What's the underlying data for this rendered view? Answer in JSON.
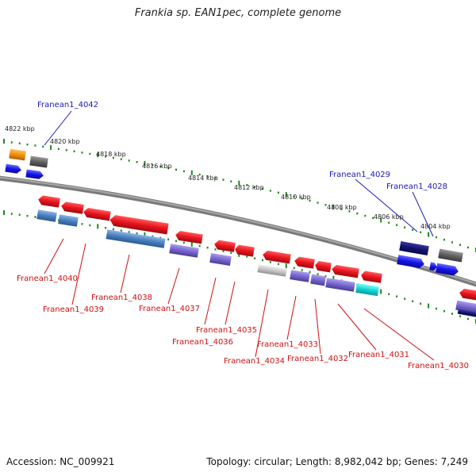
{
  "title": "Frankia sp. EAN1pec, complete genome",
  "footer": {
    "accession": "Accession: NC_009921",
    "summary": "Topology: circular; Length: 8,982,042 bp; Genes: 7,249"
  },
  "scale_labels": [
    "4822 kbp",
    "4820 kbp",
    "4818 kbp",
    "4816 kbp",
    "4814 kbp",
    "4812 kbp",
    "4810 kbp",
    "4808 kbp",
    "4806 kbp",
    "4804 kbp"
  ],
  "gene_labels": {
    "top": [
      "Franean1_4042",
      "Franean1_4029",
      "Franean1_4028"
    ],
    "bottom": [
      "Franean1_4040",
      "Franean1_4039",
      "Franean1_4038",
      "Franean1_4037",
      "Franean1_4035",
      "Franean1_4036",
      "Franean1_4034",
      "Franean1_4033",
      "Franean1_4032",
      "Franean1_4031",
      "Franean1_4030"
    ]
  },
  "colors": {
    "backbone": "#8a8a8a",
    "tick": "#1e8a1e",
    "gene_red": "#e8141e",
    "gene_blue": "#4a7fbf",
    "gene_purple": "#7766cc",
    "gene_navy": "#121270",
    "gene_bright_blue": "#1414e6",
    "gene_orange": "#f0900a",
    "gene_gray": "#606060",
    "gene_silver": "#c4c4c4",
    "gene_cyan": "#14d4d4",
    "label_top": "#1a1ab8",
    "label_bottom": "#cc1111"
  }
}
